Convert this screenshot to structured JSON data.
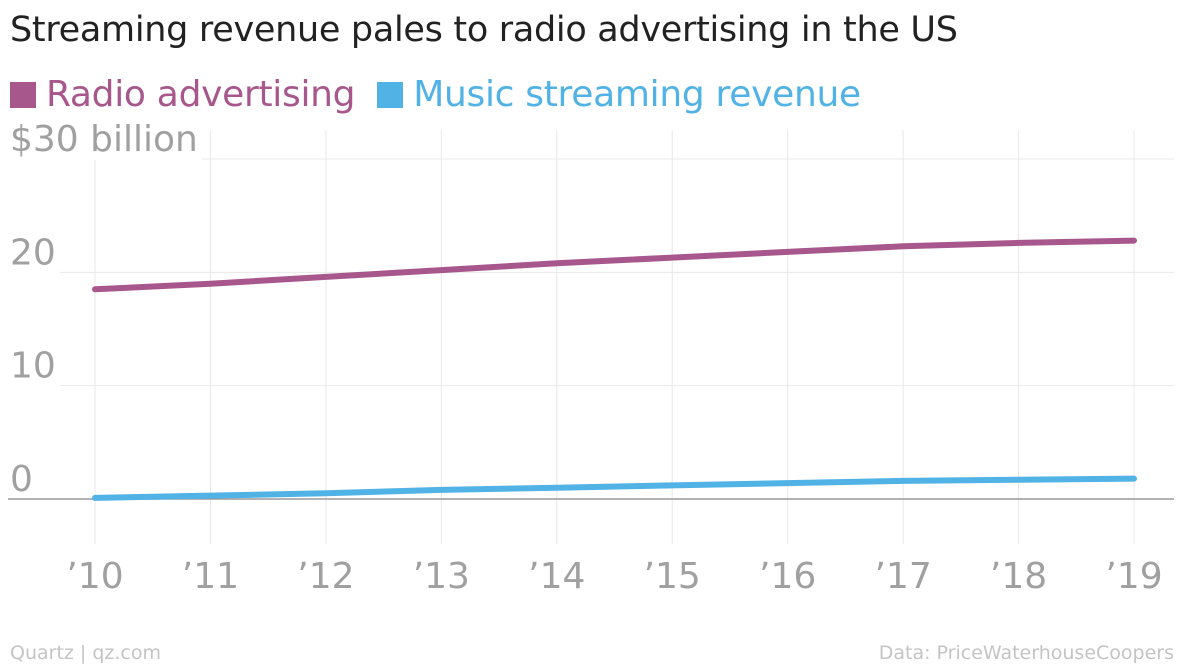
{
  "title": "Streaming revenue pales to radio advertising in the US",
  "footer": {
    "credit": "Quartz | qz.com",
    "source": "Data: PriceWaterhouseCoopers"
  },
  "colors": {
    "radio": "#a8578c",
    "streaming": "#51b2e5",
    "grid": "#e8e8e8",
    "zero_line": "#999999",
    "tick_label": "#a0a0a0"
  },
  "chart_data": {
    "type": "line",
    "categories": [
      "’10",
      "’11",
      "’12",
      "’13",
      "’14",
      "’15",
      "’16",
      "’17",
      "’18",
      "’19"
    ],
    "series": [
      {
        "name": "Radio advertising",
        "values": [
          18.5,
          19.0,
          19.6,
          20.2,
          20.8,
          21.3,
          21.8,
          22.3,
          22.6,
          22.8
        ]
      },
      {
        "name": "Music streaming revenue",
        "values": [
          0.1,
          0.3,
          0.5,
          0.8,
          1.0,
          1.2,
          1.4,
          1.6,
          1.7,
          1.8
        ]
      }
    ],
    "y_ticks": [
      {
        "value": 0,
        "label": "0"
      },
      {
        "value": 10,
        "label": "10"
      },
      {
        "value": 20,
        "label": "20"
      },
      {
        "value": 30,
        "label": "$30 billion"
      }
    ],
    "ylim": [
      0,
      30
    ],
    "grid": true,
    "legend_position": "top-left"
  }
}
